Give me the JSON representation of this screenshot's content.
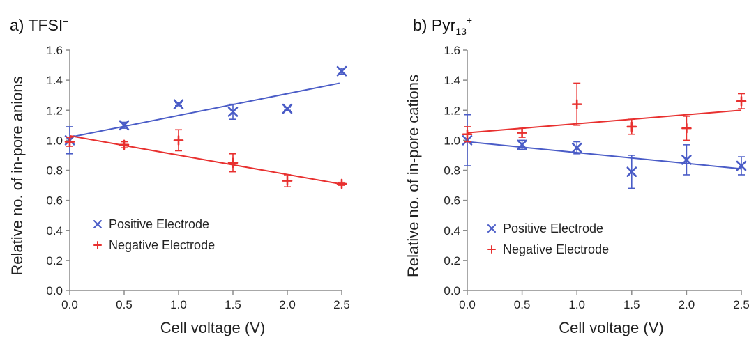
{
  "colors": {
    "positive": "#4a5cc7",
    "negative": "#e8302f",
    "axis": "#8c8c8c"
  },
  "chart_data": [
    {
      "type": "scatter",
      "panel_title": "a) TFSI",
      "title_sup": "−",
      "xlabel": "Cell voltage (V)",
      "ylabel": "Relative no. of in-pore anions",
      "xlim": [
        0,
        2.5
      ],
      "ylim": [
        0,
        1.6
      ],
      "xticks": [
        "0.0",
        "0.5",
        "1.0",
        "1.5",
        "2.0",
        "2.5"
      ],
      "yticks": [
        "0.0",
        "0.2",
        "0.4",
        "0.6",
        "0.8",
        "1.0",
        "1.2",
        "1.4",
        "1.6"
      ],
      "legend_position": "middle-left",
      "series": [
        {
          "name": "Positive Electrode",
          "marker": "x",
          "points": [
            {
              "x": 0.0,
              "y": 1.0,
              "err": 0.09
            },
            {
              "x": 0.5,
              "y": 1.1,
              "err": 0.02
            },
            {
              "x": 1.0,
              "y": 1.24,
              "err": 0.01
            },
            {
              "x": 1.5,
              "y": 1.19,
              "err": 0.05
            },
            {
              "x": 2.0,
              "y": 1.21,
              "err": 0.01
            },
            {
              "x": 2.5,
              "y": 1.46,
              "err": 0.02
            }
          ],
          "fit": {
            "x": [
              0.0,
              2.48
            ],
            "y": [
              1.02,
              1.38
            ]
          }
        },
        {
          "name": "Negative Electrode",
          "marker": "+",
          "points": [
            {
              "x": 0.0,
              "y": 0.99,
              "err": 0.03
            },
            {
              "x": 0.5,
              "y": 0.97,
              "err": 0.02
            },
            {
              "x": 1.0,
              "y": 1.0,
              "err": 0.07
            },
            {
              "x": 1.5,
              "y": 0.85,
              "err": 0.06
            },
            {
              "x": 2.0,
              "y": 0.73,
              "err": 0.04
            },
            {
              "x": 2.5,
              "y": 0.71,
              "err": 0.01
            }
          ],
          "fit": {
            "x": [
              0.0,
              2.48
            ],
            "y": [
              1.03,
              0.71
            ]
          }
        }
      ]
    },
    {
      "type": "scatter",
      "panel_title": "b) Pyr",
      "title_sub": "13",
      "title_sup": "+",
      "xlabel": "Cell voltage (V)",
      "ylabel": "Relative no. of in-pore cations",
      "xlim": [
        0,
        2.5
      ],
      "ylim": [
        0,
        1.6
      ],
      "xticks": [
        "0.0",
        "0.5",
        "1.0",
        "1.5",
        "2.0",
        "2.5"
      ],
      "yticks": [
        "0.0",
        "0.2",
        "0.4",
        "0.6",
        "0.8",
        "1.0",
        "1.2",
        "1.4",
        "1.6"
      ],
      "legend_position": "lower-left",
      "series": [
        {
          "name": "Positive Electrode",
          "marker": "x",
          "points": [
            {
              "x": 0.0,
              "y": 1.0,
              "err": 0.17
            },
            {
              "x": 0.5,
              "y": 0.97,
              "err": 0.03
            },
            {
              "x": 1.0,
              "y": 0.95,
              "err": 0.04
            },
            {
              "x": 1.5,
              "y": 0.79,
              "err": 0.11
            },
            {
              "x": 2.0,
              "y": 0.87,
              "err": 0.1
            },
            {
              "x": 2.5,
              "y": 0.83,
              "err": 0.06
            }
          ],
          "fit": {
            "x": [
              0.0,
              2.5
            ],
            "y": [
              0.99,
              0.81
            ]
          }
        },
        {
          "name": "Negative Electrode",
          "marker": "+",
          "points": [
            {
              "x": 0.0,
              "y": 1.04,
              "err": 0.05
            },
            {
              "x": 0.5,
              "y": 1.05,
              "err": 0.03
            },
            {
              "x": 1.0,
              "y": 1.24,
              "err": 0.14
            },
            {
              "x": 1.5,
              "y": 1.09,
              "err": 0.05
            },
            {
              "x": 2.0,
              "y": 1.08,
              "err": 0.08
            },
            {
              "x": 2.5,
              "y": 1.26,
              "err": 0.05
            }
          ],
          "fit": {
            "x": [
              0.0,
              2.5
            ],
            "y": [
              1.05,
              1.2
            ]
          }
        }
      ]
    }
  ]
}
